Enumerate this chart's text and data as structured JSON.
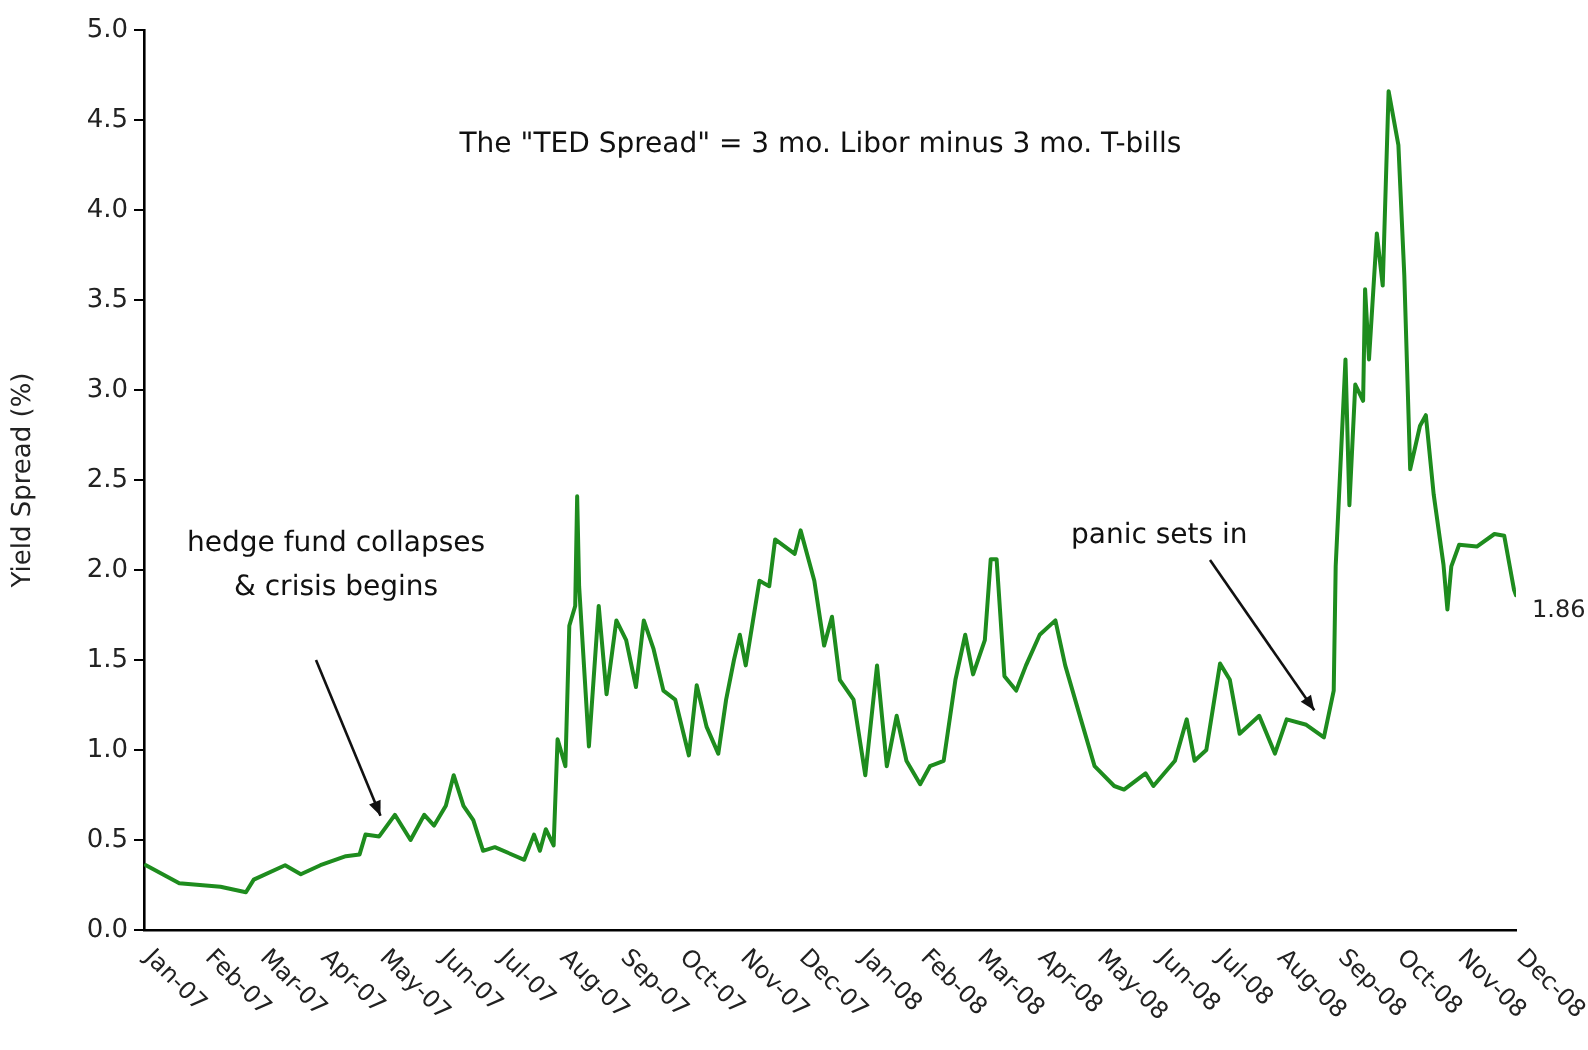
{
  "chart_data": {
    "type": "line",
    "ylabel": "Yield Spread (%)",
    "annotations": [
      "The \"TED Spread\" = 3 mo. Libor minus 3 mo. T-bills",
      "hedge fund collapses & crisis begins",
      "panic sets in"
    ],
    "xlim": [
      "2007-01-01",
      "2008-12-01"
    ],
    "xticks": [
      {
        "value": "2007-01",
        "label": "Jan-07"
      },
      {
        "value": "2007-02",
        "label": "Feb-07"
      },
      {
        "value": "2007-03",
        "label": "Mar-07"
      },
      {
        "value": "2007-04",
        "label": "Apr-07"
      },
      {
        "value": "2007-05",
        "label": "May-07"
      },
      {
        "value": "2007-06",
        "label": "Jun-07"
      },
      {
        "value": "2007-07",
        "label": "Jul-07"
      },
      {
        "value": "2007-08",
        "label": "Aug-07"
      },
      {
        "value": "2007-09",
        "label": "Sep-07"
      },
      {
        "value": "2007-10",
        "label": "Oct-07"
      },
      {
        "value": "2007-11",
        "label": "Nov-07"
      },
      {
        "value": "2007-12",
        "label": "Dec-07"
      },
      {
        "value": "2008-01",
        "label": "Jan-08"
      },
      {
        "value": "2008-02",
        "label": "Feb-08"
      },
      {
        "value": "2008-03",
        "label": "Mar-08"
      },
      {
        "value": "2008-04",
        "label": "Apr-08"
      },
      {
        "value": "2008-05",
        "label": "May-08"
      },
      {
        "value": "2008-06",
        "label": "Jun-08"
      },
      {
        "value": "2008-07",
        "label": "Jul-08"
      },
      {
        "value": "2008-08",
        "label": "Aug-08"
      },
      {
        "value": "2008-09",
        "label": "Sep-08"
      },
      {
        "value": "2008-10",
        "label": "Oct-08"
      },
      {
        "value": "2008-11",
        "label": "Nov-08"
      },
      {
        "value": "2008-12",
        "label": "Dec-08"
      }
    ],
    "ylim": [
      0,
      5
    ],
    "yticks": [
      {
        "value": 0,
        "label": "0.0"
      },
      {
        "value": 0.5,
        "label": "0.5"
      },
      {
        "value": 1,
        "label": "1.0"
      },
      {
        "value": 1.5,
        "label": "1.5"
      },
      {
        "value": 2,
        "label": "2.0"
      },
      {
        "value": 2.5,
        "label": "2.5"
      },
      {
        "value": 3,
        "label": "3.0"
      },
      {
        "value": 3.5,
        "label": "3.5"
      },
      {
        "value": 4,
        "label": "4.0"
      },
      {
        "value": 4.5,
        "label": "4.5"
      },
      {
        "value": 5,
        "label": "5.0"
      }
    ],
    "grid": false,
    "legend": false,
    "marker": "none",
    "line_style": "solid",
    "series": [
      {
        "color": "#1e8c1e",
        "x": [
          "2007-01-02",
          "2007-01-19",
          "2007-02-09",
          "2007-02-22",
          "2007-02-26",
          "2007-03-14",
          "2007-03-22",
          "2007-04-01",
          "2007-04-14",
          "2007-04-21",
          "2007-04-24",
          "2007-05-01",
          "2007-05-09",
          "2007-05-17",
          "2007-05-24",
          "2007-05-29",
          "2007-06-04",
          "2007-06-08",
          "2007-06-13",
          "2007-06-18",
          "2007-06-23",
          "2007-06-29",
          "2007-07-14",
          "2007-07-19",
          "2007-07-22",
          "2007-07-25",
          "2007-07-29",
          "2007-07-31",
          "2007-08-04",
          "2007-08-06",
          "2007-08-09",
          "2007-08-10",
          "2007-08-11",
          "2007-08-16",
          "2007-08-21",
          "2007-08-25",
          "2007-08-30",
          "2007-09-04",
          "2007-09-09",
          "2007-09-13",
          "2007-09-18",
          "2007-09-23",
          "2007-09-29",
          "2007-10-06",
          "2007-10-10",
          "2007-10-15",
          "2007-10-21",
          "2007-10-25",
          "2007-10-29",
          "2007-11-01",
          "2007-11-04",
          "2007-11-11",
          "2007-11-16",
          "2007-11-19",
          "2007-11-29",
          "2007-12-02",
          "2007-12-09",
          "2007-12-14",
          "2007-12-18",
          "2007-12-22",
          "2007-12-29",
          "2008-01-04",
          "2008-01-10",
          "2008-01-15",
          "2008-01-20",
          "2008-01-25",
          "2008-02-01",
          "2008-02-06",
          "2008-02-13",
          "2008-02-19",
          "2008-02-24",
          "2008-02-28",
          "2008-03-05",
          "2008-03-08",
          "2008-03-11",
          "2008-03-15",
          "2008-03-21",
          "2008-03-26",
          "2008-04-02",
          "2008-04-10",
          "2008-04-15",
          "2008-04-23",
          "2008-04-30",
          "2008-05-10",
          "2008-05-15",
          "2008-05-26",
          "2008-05-30",
          "2008-06-10",
          "2008-06-16",
          "2008-06-20",
          "2008-06-26",
          "2008-07-03",
          "2008-07-08",
          "2008-07-13",
          "2008-07-23",
          "2008-07-31",
          "2008-08-06",
          "2008-08-16",
          "2008-08-25",
          "2008-08-30",
          "2008-08-31",
          "2008-09-05",
          "2008-09-07",
          "2008-09-10",
          "2008-09-14",
          "2008-09-15",
          "2008-09-17",
          "2008-09-21",
          "2008-09-24",
          "2008-09-27",
          "2008-10-02",
          "2008-10-05",
          "2008-10-08",
          "2008-10-13",
          "2008-10-16",
          "2008-10-20",
          "2008-10-25",
          "2008-10-27",
          "2008-10-29",
          "2008-11-02",
          "2008-11-11",
          "2008-11-20",
          "2008-11-25",
          "2008-11-30",
          "2008-12-01"
        ],
        "values": [
          0.36,
          0.26,
          0.24,
          0.21,
          0.28,
          0.36,
          0.31,
          0.36,
          0.41,
          0.42,
          0.53,
          0.52,
          0.64,
          0.5,
          0.64,
          0.58,
          0.69,
          0.86,
          0.69,
          0.61,
          0.44,
          0.46,
          0.39,
          0.53,
          0.44,
          0.56,
          0.47,
          1.06,
          0.91,
          1.69,
          1.8,
          2.41,
          1.91,
          1.02,
          1.8,
          1.31,
          1.72,
          1.61,
          1.35,
          1.72,
          1.56,
          1.33,
          1.28,
          0.97,
          1.36,
          1.13,
          0.98,
          1.28,
          1.5,
          1.64,
          1.47,
          1.94,
          1.91,
          2.17,
          2.09,
          2.22,
          1.94,
          1.58,
          1.74,
          1.39,
          1.28,
          0.86,
          1.47,
          0.91,
          1.19,
          0.94,
          0.81,
          0.91,
          0.94,
          1.39,
          1.64,
          1.42,
          1.61,
          2.06,
          2.06,
          1.41,
          1.33,
          1.47,
          1.64,
          1.72,
          1.47,
          1.17,
          0.91,
          0.8,
          0.78,
          0.87,
          0.8,
          0.94,
          1.17,
          0.94,
          1.0,
          1.48,
          1.39,
          1.09,
          1.19,
          0.98,
          1.17,
          1.14,
          1.07,
          1.33,
          2.02,
          3.17,
          2.36,
          3.03,
          2.94,
          3.56,
          3.17,
          3.87,
          3.58,
          4.66,
          4.36,
          3.64,
          2.56,
          2.8,
          2.86,
          2.42,
          2.03,
          1.78,
          2.02,
          2.14,
          2.13,
          2.2,
          2.19,
          1.89,
          1.86
        ],
        "value_labels": [
          null,
          null,
          null,
          null,
          null,
          null,
          null,
          null,
          null,
          null,
          null,
          null,
          null,
          null,
          null,
          null,
          null,
          null,
          null,
          null,
          null,
          null,
          null,
          null,
          null,
          null,
          null,
          null,
          null,
          null,
          null,
          null,
          null,
          null,
          null,
          null,
          null,
          null,
          null,
          null,
          null,
          null,
          null,
          null,
          null,
          null,
          null,
          null,
          null,
          null,
          null,
          null,
          null,
          null,
          null,
          null,
          null,
          null,
          null,
          null,
          null,
          null,
          null,
          null,
          null,
          null,
          null,
          null,
          null,
          null,
          null,
          null,
          null,
          null,
          null,
          null,
          null,
          null,
          null,
          null,
          null,
          null,
          null,
          null,
          null,
          null,
          null,
          null,
          null,
          null,
          null,
          null,
          null,
          null,
          null,
          null,
          null,
          null,
          null,
          null,
          null,
          null,
          null,
          null,
          null,
          null,
          null,
          null,
          null,
          null,
          null,
          null,
          null,
          null,
          null,
          null,
          null,
          null,
          null,
          null,
          null,
          null,
          null,
          null,
          "1.86"
        ]
      }
    ]
  }
}
